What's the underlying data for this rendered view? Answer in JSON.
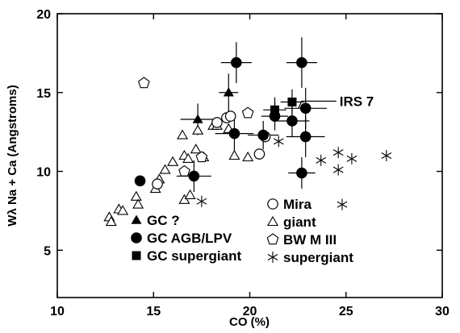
{
  "chart_data": {
    "type": "scatter",
    "title": "",
    "xlabel": "CO (%)",
    "ylabel": "Wλ Na + Ca (Angstroms)",
    "xlim": [
      10,
      30
    ],
    "ylim": [
      2,
      20
    ],
    "xticks": [
      "10",
      "15",
      "20",
      "25",
      "30"
    ],
    "yticks": [
      "5",
      "10",
      "15",
      "20"
    ],
    "grid": false,
    "legend": [
      {
        "key": "gc_unknown",
        "label": "GC ?",
        "marker": "filled-triangle"
      },
      {
        "key": "gc_agb",
        "label": "GC AGB/LPV",
        "marker": "filled-circle"
      },
      {
        "key": "gc_super",
        "label": "GC supergiant",
        "marker": "filled-square"
      },
      {
        "key": "mira",
        "label": "Mira",
        "marker": "open-circle"
      },
      {
        "key": "giant",
        "label": "giant",
        "marker": "open-triangle"
      },
      {
        "key": "bwm",
        "label": "BW M III",
        "marker": "open-pentagon"
      },
      {
        "key": "supergiant",
        "label": "supergiant",
        "marker": "star"
      }
    ],
    "annotations": [
      {
        "text": "IRS 7",
        "x": 22.4,
        "y": 14.3
      }
    ],
    "series": [
      {
        "key": "gc_unknown",
        "points": [
          {
            "x": 17.3,
            "y": 13.3,
            "xerr": 0.9,
            "yerr": 1.0
          },
          {
            "x": 18.9,
            "y": 15.0,
            "xerr": 0.5,
            "yerr": 1.2
          }
        ]
      },
      {
        "key": "gc_agb",
        "points": [
          {
            "x": 14.3,
            "y": 9.4,
            "xerr": 0,
            "yerr": 0
          },
          {
            "x": 17.1,
            "y": 9.7,
            "xerr": 0.9,
            "yerr": 1.0
          },
          {
            "x": 19.3,
            "y": 16.9,
            "xerr": 0.8,
            "yerr": 1.3
          },
          {
            "x": 19.2,
            "y": 12.4,
            "xerr": 1.0,
            "yerr": 1.1
          },
          {
            "x": 20.7,
            "y": 12.3,
            "xerr": 0.8,
            "yerr": 0.9
          },
          {
            "x": 21.3,
            "y": 13.5,
            "xerr": 0.7,
            "yerr": 0.9
          },
          {
            "x": 22.2,
            "y": 13.2,
            "xerr": 0.9,
            "yerr": 1.0
          },
          {
            "x": 22.7,
            "y": 16.9,
            "xerr": 0.8,
            "yerr": 1.6
          },
          {
            "x": 22.9,
            "y": 14.0,
            "xerr": 1.1,
            "yerr": 1.3
          },
          {
            "x": 22.9,
            "y": 12.2,
            "xerr": 1.0,
            "yerr": 1.3
          },
          {
            "x": 22.7,
            "y": 9.9,
            "xerr": 0.7,
            "yerr": 1.0
          }
        ]
      },
      {
        "key": "gc_super",
        "points": [
          {
            "x": 21.3,
            "y": 13.9,
            "xerr": 0.6,
            "yerr": 0.8
          },
          {
            "x": 22.2,
            "y": 14.4,
            "xerr": 0.6,
            "yerr": 0.8
          }
        ]
      },
      {
        "key": "mira",
        "points": [
          {
            "x": 15.2,
            "y": 9.2
          },
          {
            "x": 18.3,
            "y": 13.1
          },
          {
            "x": 18.8,
            "y": 13.4
          },
          {
            "x": 19.0,
            "y": 13.5
          },
          {
            "x": 20.5,
            "y": 11.1
          },
          {
            "x": 20.8,
            "y": 12.2
          }
        ]
      },
      {
        "key": "giant",
        "points": [
          {
            "x": 12.7,
            "y": 7.1
          },
          {
            "x": 12.8,
            "y": 6.8
          },
          {
            "x": 13.2,
            "y": 7.6
          },
          {
            "x": 13.4,
            "y": 7.5
          },
          {
            "x": 14.1,
            "y": 8.4
          },
          {
            "x": 14.2,
            "y": 7.9
          },
          {
            "x": 15.1,
            "y": 8.9
          },
          {
            "x": 15.3,
            "y": 9.5
          },
          {
            "x": 15.6,
            "y": 10.1
          },
          {
            "x": 16.0,
            "y": 10.6
          },
          {
            "x": 16.5,
            "y": 12.3
          },
          {
            "x": 16.6,
            "y": 11.0
          },
          {
            "x": 16.6,
            "y": 8.2
          },
          {
            "x": 16.8,
            "y": 10.8
          },
          {
            "x": 16.9,
            "y": 8.5
          },
          {
            "x": 17.2,
            "y": 11.4
          },
          {
            "x": 17.3,
            "y": 12.6
          },
          {
            "x": 17.6,
            "y": 10.9
          },
          {
            "x": 18.1,
            "y": 12.9
          },
          {
            "x": 18.3,
            "y": 12.9
          },
          {
            "x": 18.9,
            "y": 12.7
          },
          {
            "x": 19.2,
            "y": 11.0
          },
          {
            "x": 19.9,
            "y": 10.9
          }
        ]
      },
      {
        "key": "bwm",
        "points": [
          {
            "x": 14.5,
            "y": 15.6
          },
          {
            "x": 16.6,
            "y": 10.0
          },
          {
            "x": 17.5,
            "y": 10.9
          },
          {
            "x": 19.9,
            "y": 13.7
          }
        ]
      },
      {
        "key": "supergiant",
        "points": [
          {
            "x": 17.5,
            "y": 8.1
          },
          {
            "x": 21.5,
            "y": 11.9
          },
          {
            "x": 23.7,
            "y": 10.7
          },
          {
            "x": 24.6,
            "y": 11.2
          },
          {
            "x": 24.6,
            "y": 10.1
          },
          {
            "x": 24.8,
            "y": 7.9
          },
          {
            "x": 25.3,
            "y": 10.8
          },
          {
            "x": 27.1,
            "y": 11.0
          }
        ]
      }
    ]
  }
}
